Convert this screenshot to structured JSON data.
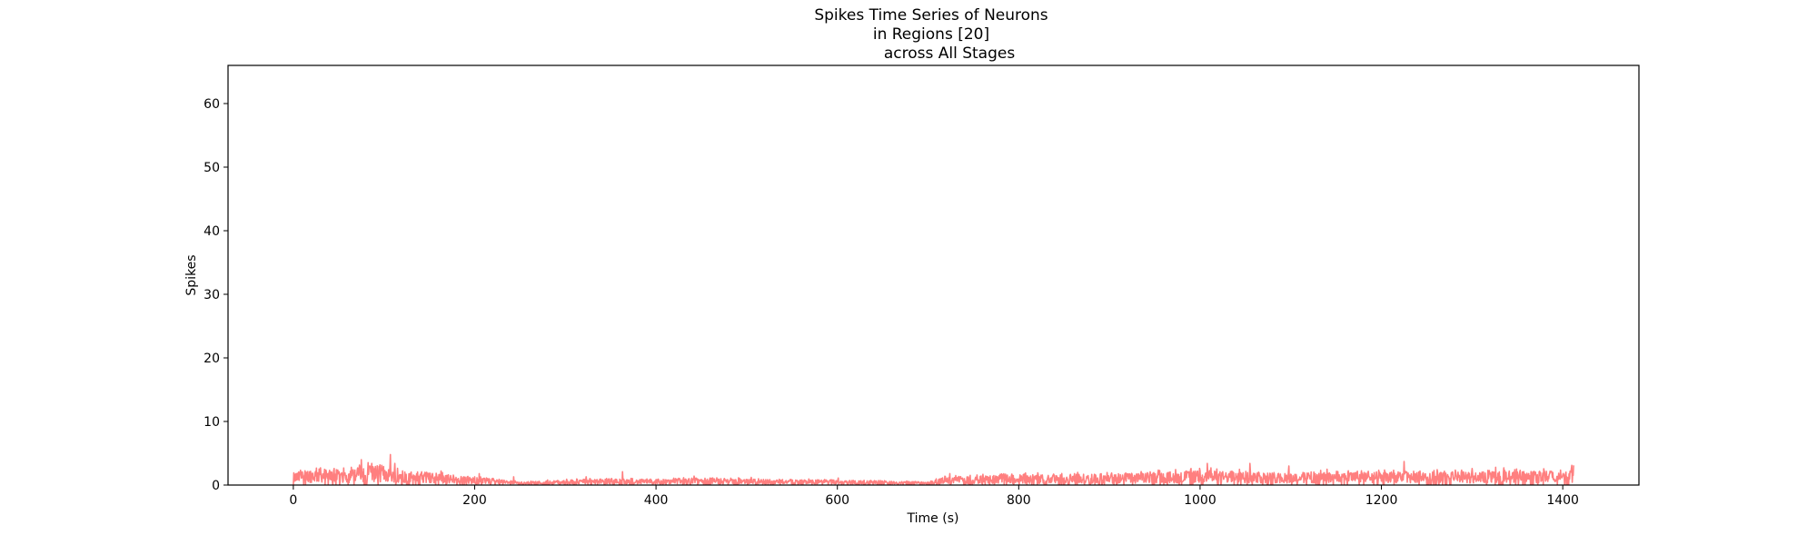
{
  "chart_data": {
    "type": "line",
    "title_lines": [
      "Spikes Time Series of Neurons",
      "in Regions [20]",
      "across All Stages"
    ],
    "xlabel": "Time (s)",
    "ylabel": "Spikes",
    "xlim": [
      -72,
      1484
    ],
    "ylim": [
      0,
      66
    ],
    "xticks": [
      0,
      200,
      400,
      600,
      800,
      1000,
      1200,
      1400
    ],
    "yticks": [
      0,
      10,
      20,
      30,
      40,
      50,
      60
    ],
    "line_color": "#ff7f7f",
    "grid": false,
    "x_start": 0,
    "x_end": 1412,
    "profile": [
      [
        0,
        1.2
      ],
      [
        20,
        1.6
      ],
      [
        40,
        1.6
      ],
      [
        60,
        1.4
      ],
      [
        80,
        2.0
      ],
      [
        100,
        2.0
      ],
      [
        120,
        1.5
      ],
      [
        150,
        1.2
      ],
      [
        180,
        0.9
      ],
      [
        220,
        0.6
      ],
      [
        250,
        0.3
      ],
      [
        300,
        0.5
      ],
      [
        350,
        0.6
      ],
      [
        400,
        0.5
      ],
      [
        450,
        0.7
      ],
      [
        500,
        0.6
      ],
      [
        600,
        0.5
      ],
      [
        650,
        0.4
      ],
      [
        700,
        0.3
      ],
      [
        720,
        0.8
      ],
      [
        800,
        1.0
      ],
      [
        900,
        1.1
      ],
      [
        1000,
        1.4
      ],
      [
        1100,
        1.2
      ],
      [
        1200,
        1.3
      ],
      [
        1300,
        1.3
      ],
      [
        1412,
        1.4
      ]
    ],
    "peaks": [
      [
        3,
        1.8
      ],
      [
        30,
        2.7
      ],
      [
        45,
        2.6
      ],
      [
        75,
        4.0
      ],
      [
        84,
        2.8
      ],
      [
        107,
        4.8
      ],
      [
        112,
        3.4
      ],
      [
        163,
        2.2
      ],
      [
        205,
        1.8
      ],
      [
        243,
        1.3
      ],
      [
        323,
        1.3
      ],
      [
        363,
        2.1
      ],
      [
        442,
        1.4
      ],
      [
        505,
        1.2
      ],
      [
        601,
        1.1
      ],
      [
        724,
        1.8
      ],
      [
        780,
        1.6
      ],
      [
        865,
        2.0
      ],
      [
        918,
        1.9
      ],
      [
        990,
        2.6
      ],
      [
        1008,
        3.4
      ],
      [
        1012,
        2.7
      ],
      [
        1055,
        3.4
      ],
      [
        1098,
        3.0
      ],
      [
        1140,
        2.5
      ],
      [
        1225,
        3.7
      ],
      [
        1258,
        2.3
      ],
      [
        1300,
        2.6
      ],
      [
        1326,
        2.8
      ],
      [
        1335,
        2.7
      ],
      [
        1410,
        3.1
      ]
    ]
  }
}
